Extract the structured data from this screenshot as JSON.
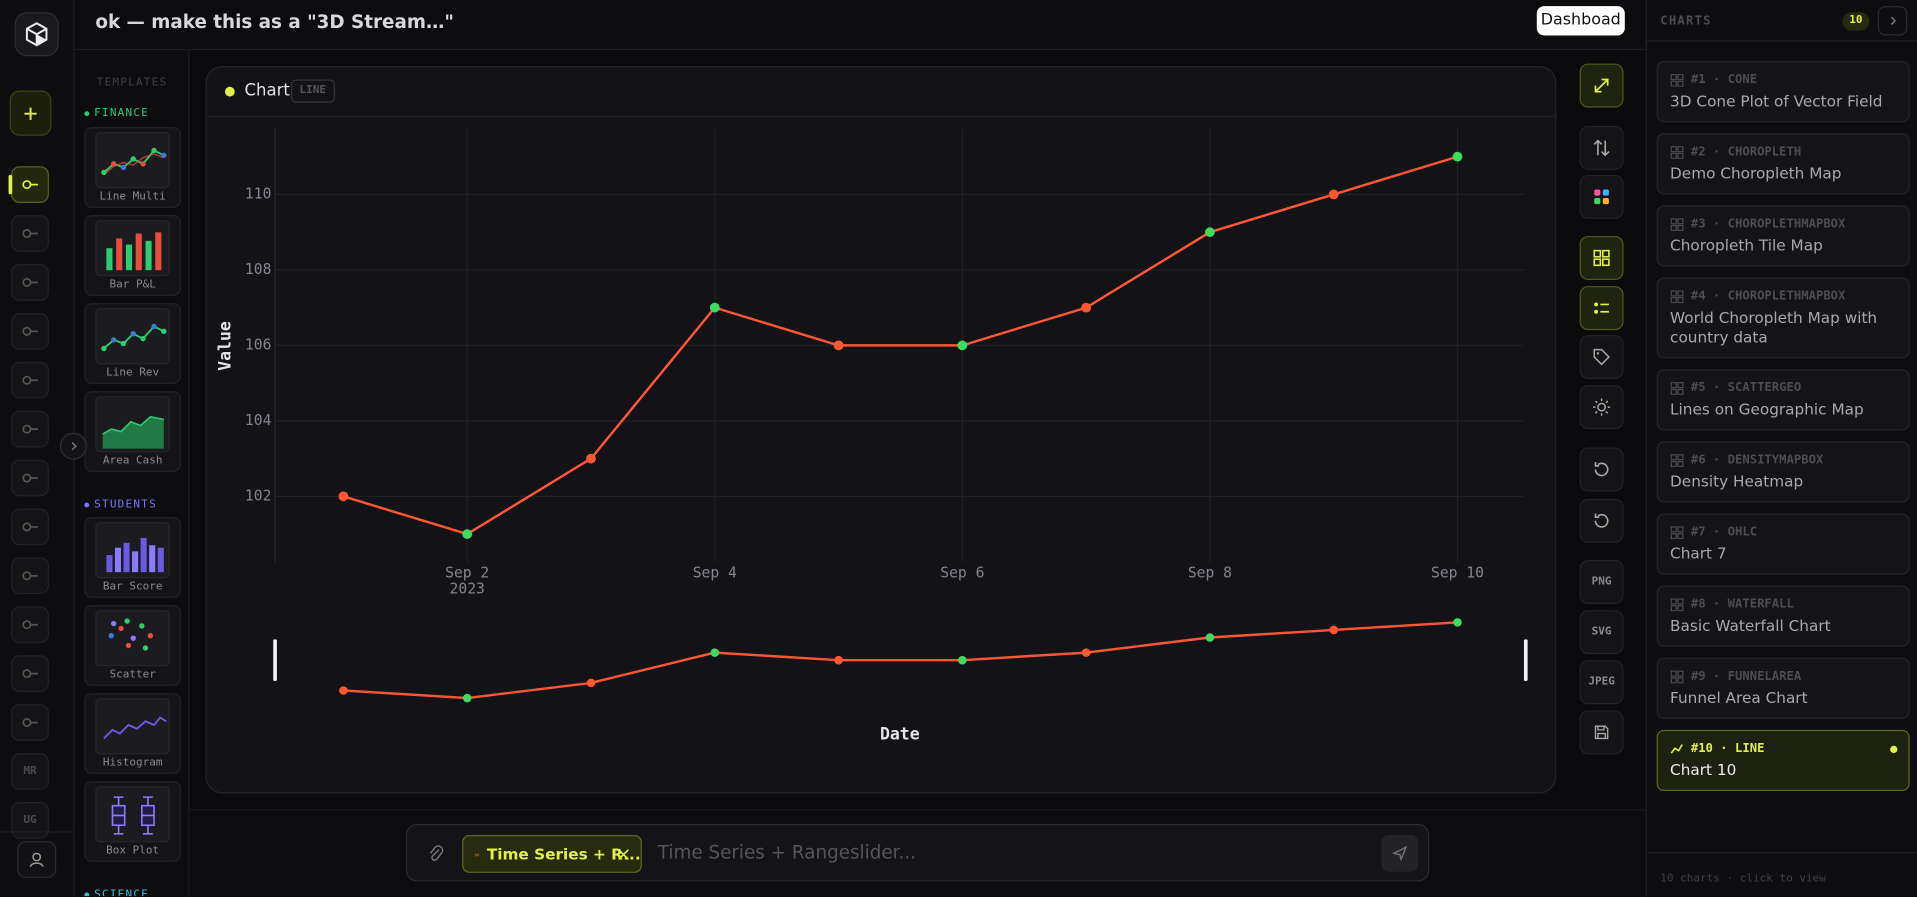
{
  "header": {
    "title": "ok — make this as a \"3D Stream…\"",
    "button": "Dashboad"
  },
  "sidebar": {
    "buttons": [
      "MR",
      "UG"
    ]
  },
  "templates": {
    "heading": "TEMPLATES",
    "groups": [
      {
        "name": "FINANCE",
        "items": [
          "Line Multi",
          "Bar P&L",
          "Line Rev",
          "Area Cash"
        ]
      },
      {
        "name": "STUDENTS",
        "items": [
          "Bar Score",
          "Scatter",
          "Histogram",
          "Box Plot"
        ]
      },
      {
        "name": "SCIENCE",
        "items": []
      }
    ]
  },
  "chart_card": {
    "badge": "LINE"
  },
  "toolbar": {
    "exports": [
      "PNG",
      "SVG",
      "JPEG"
    ]
  },
  "chart_data": {
    "type": "line",
    "title": "Chart",
    "x": [
      "2023-09-01",
      "2023-09-02",
      "2023-09-03",
      "2023-09-04",
      "2023-09-05",
      "2023-09-06",
      "2023-09-07",
      "2023-09-08",
      "2023-09-09",
      "2023-09-10"
    ],
    "series": [
      {
        "color": "#ff5733",
        "values": [
          102,
          101,
          103,
          107,
          106,
          106,
          107,
          109,
          110,
          111
        ],
        "marker_colors": [
          "#ff5733",
          "#3ddc5c",
          "#ff5733",
          "#3ddc5c",
          "#ff5733",
          "#3ddc5c",
          "#ff5733",
          "#3ddc5c",
          "#ff5733",
          "#3ddc5c"
        ]
      }
    ],
    "xlabel": "Date",
    "ylabel": "Value",
    "xlim": [
      "2023-08-31T10:45:00Z",
      "2023-09-10T12:46:00Z"
    ],
    "xticks": [
      {
        "value": "2023-09-02",
        "label": "Sep 2"
      },
      {
        "value": "2023-09-04",
        "label": "Sep 4"
      },
      {
        "value": "2023-09-06",
        "label": "Sep 6"
      },
      {
        "value": "2023-09-08",
        "label": "Sep 8"
      },
      {
        "value": "2023-09-10",
        "label": "Sep 10"
      }
    ],
    "xtick_year": "2023",
    "ylim": [
      100.25,
      111.75
    ],
    "yticks": [
      102,
      104,
      106,
      108,
      110
    ],
    "grid": true,
    "rangeslider": true
  },
  "input": {
    "chip": "Time Series + R...",
    "placeholder": "Time Series + Rangeslider..."
  },
  "charts_panel": {
    "heading": "CHARTS",
    "count": 10,
    "items": [
      {
        "label": "#1 · CONE",
        "title": "3D Cone Plot of Vector Field"
      },
      {
        "label": "#2 · CHOROPLETH",
        "title": "Demo Choropleth Map"
      },
      {
        "label": "#3 · CHOROPLETHMAPBOX",
        "title": "Choropleth Tile Map"
      },
      {
        "label": "#4 · CHOROPLETHMAPBOX",
        "title": "World Choropleth Map with country data"
      },
      {
        "label": "#5 · SCATTERGEO",
        "title": "Lines on Geographic Map"
      },
      {
        "label": "#6 · DENSITYMAPBOX",
        "title": "Density Heatmap"
      },
      {
        "label": "#7 · OHLC",
        "title": "Chart 7"
      },
      {
        "label": "#8 · WATERFALL",
        "title": "Basic Waterfall Chart"
      },
      {
        "label": "#9 · FUNNELAREA",
        "title": "Funnel Area Chart"
      },
      {
        "label": "#10 · LINE",
        "title": "Chart 10"
      }
    ],
    "footer": "10 charts · click to view"
  }
}
